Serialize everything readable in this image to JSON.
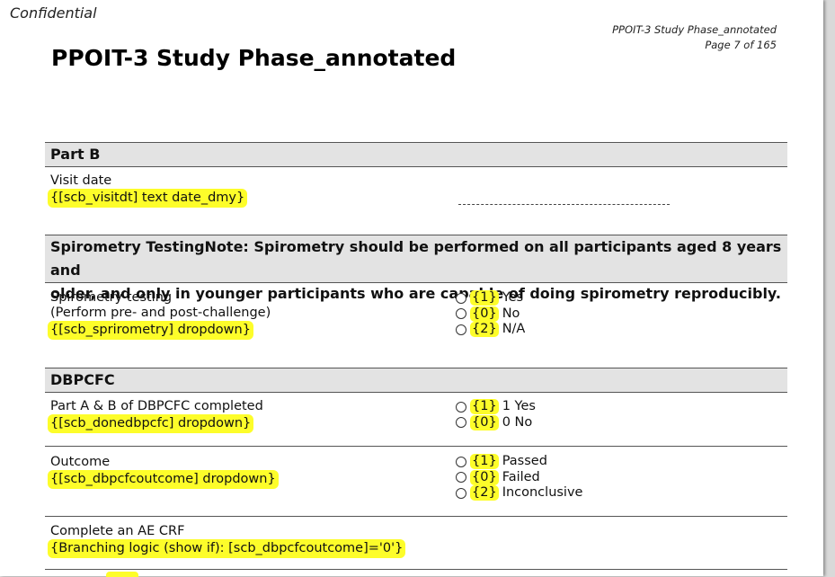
{
  "confidential": "Confidential",
  "header": {
    "doc_name": "PPOIT-3 Study Phase_annotated",
    "page": "Page 7 of 165"
  },
  "title": "PPOIT-3 Study Phase_annotated",
  "sections": {
    "part_b": {
      "heading": "Part B",
      "visit_date_label": "Visit date",
      "visit_date_annot": "{[scb_visitdt] text date_dmy}"
    },
    "spirometry": {
      "heading_line1": "Spirometry TestingNote: Spirometry should be performed on all participants aged 8 years and",
      "heading_line2": "older, and only in younger participants who are capable of doing spirometry reproducibly.",
      "label_line1": "Spirometry testing",
      "label_line2": "(Perform pre- and post-challenge)",
      "annot": "{[scb_sprirometry] dropdown}",
      "options": [
        {
          "code": "{1}",
          "label": "Yes"
        },
        {
          "code": "{0}",
          "label": "No"
        },
        {
          "code": "{2}",
          "label": "N/A"
        }
      ]
    },
    "dbpcfc": {
      "heading": "DBPCFC",
      "completed_label": "Part A & B of DBPCFC completed",
      "completed_annot": "{[scb_donedbpcfc] dropdown}",
      "completed_options": [
        {
          "code": "{1}",
          "label": "1 Yes"
        },
        {
          "code": "{0}",
          "label": "0 No"
        }
      ],
      "outcome_label": "Outcome",
      "outcome_annot": "{[scb_dbpcfcoutcome] dropdown}",
      "outcome_options": [
        {
          "code": "{1}",
          "label": "Passed"
        },
        {
          "code": "{0}",
          "label": "Failed"
        },
        {
          "code": "{2}",
          "label": "Inconclusive"
        }
      ],
      "ae_label": "Complete an AE CRF",
      "ae_annot": "{Branching logic (show if): [scb_dbpcfcoutcome]='0'}"
    }
  },
  "colors": {
    "highlight": "#fdfd2a",
    "section_bg": "#e3e3e3",
    "viewer_bg": "#d9d9d9"
  }
}
